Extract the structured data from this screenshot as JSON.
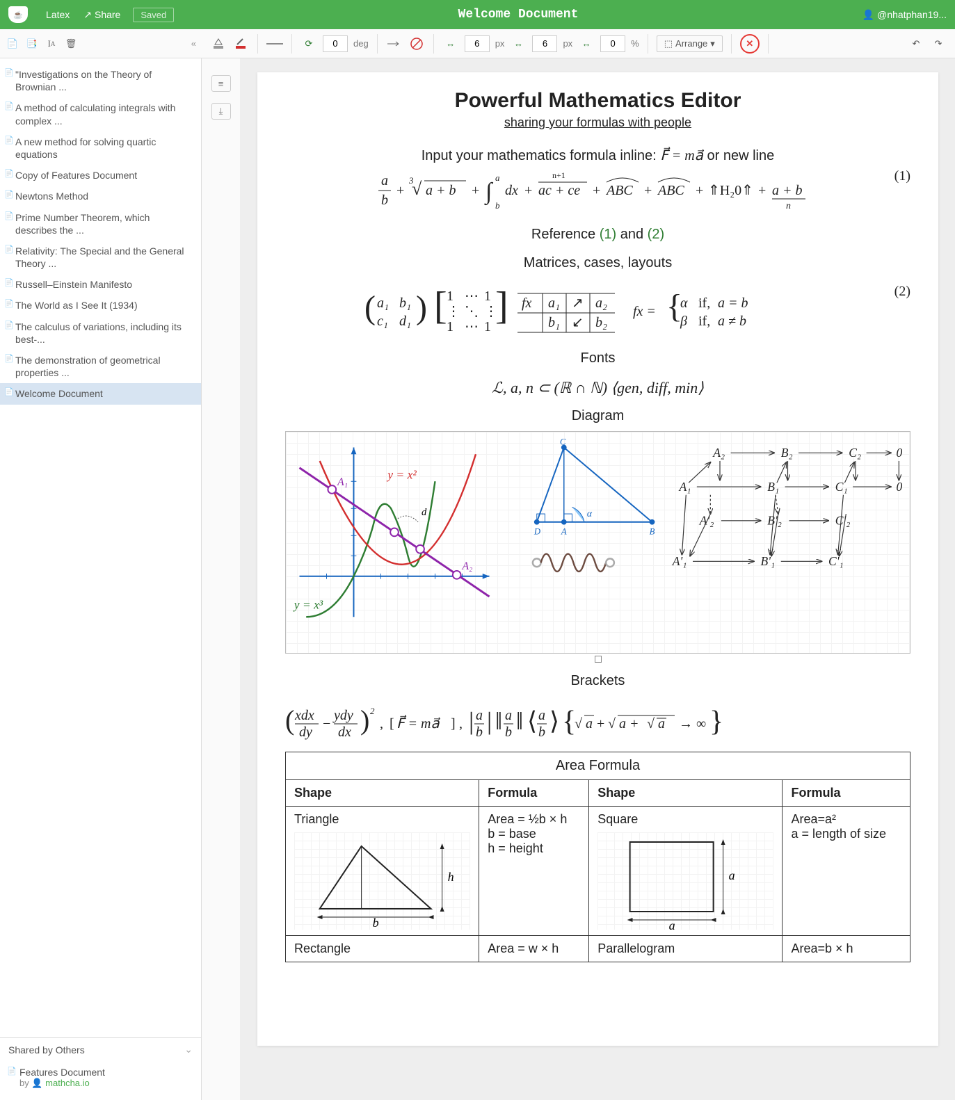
{
  "header": {
    "latex_btn": "Latex",
    "share_btn": "Share",
    "saved_label": "Saved",
    "title": "Welcome Document",
    "user": "@nhatphan19..."
  },
  "toolbar": {
    "rotate_value": "0",
    "rotate_unit": "deg",
    "dim1_value": "6",
    "dim1_unit": "px",
    "dim2_value": "6",
    "dim2_unit": "px",
    "dim3_value": "0",
    "dim3_unit": "%",
    "arrange_label": "Arrange"
  },
  "sidebar": {
    "docs": [
      "\"Investigations on the Theory of Brownian ...",
      "A method of calculating integrals with complex ...",
      "A new method for solving quartic equations",
      "Copy of Features Document",
      "Newtons Method",
      "Prime Number Theorem, which describes the ...",
      "Relativity: The Special and the General Theory ...",
      "Russell–Einstein Manifesto",
      "The World as I See It (1934)",
      "The calculus of variations, including its best-...",
      "The demonstration of geometrical properties ...",
      "Welcome Document"
    ],
    "selected_index": 11,
    "shared_header": "Shared by Others",
    "shared_doc": "Features Document",
    "shared_by": "by",
    "shared_src": "mathcha.io"
  },
  "doc": {
    "title": "Powerful Mathematics Editor",
    "subtitle": "sharing your formulas with people",
    "inline_prefix": "Input your mathematics formula inline: ",
    "inline_mid": " or new line",
    "ref_line_prefix": "Reference ",
    "ref_a": "(1)",
    "ref_and": " and ",
    "ref_b": "(2)",
    "matrices_heading": "Matrices, cases, layouts",
    "fonts_heading": "Fonts",
    "diagram_heading": "Diagram",
    "brackets_heading": "Brackets",
    "area_title": "Area Formula",
    "eq1_num": "(1)",
    "eq2_num": "(2)",
    "eq1": {
      "type": "formula-image",
      "svg_text_fragments": [
        "a",
        "b",
        "+",
        "∛",
        "a + b",
        "+",
        "∫",
        "a",
        "b",
        "dx",
        "+",
        "n+1",
        "ac + ce",
        "+",
        "⏜",
        "ABC",
        "+",
        "⏜",
        "ABC",
        "+",
        "⇑H₂0⇑",
        "+",
        "a + b",
        "n"
      ],
      "colors": {
        "text": "#222"
      }
    },
    "eq2": {
      "type": "formula-image",
      "matrix_a": [
        [
          "a₁",
          "b₁"
        ],
        [
          "c₁",
          "d₁"
        ]
      ],
      "matrix_b": [
        [
          "1",
          "⋯",
          "1"
        ],
        [
          "⋮",
          "⋱",
          "⋮"
        ],
        [
          "1",
          "⋯",
          "1"
        ]
      ],
      "table": [
        [
          "fx",
          "a₁",
          "↗",
          "a₂"
        ],
        [
          "",
          "b₁",
          "↙",
          "b₂"
        ]
      ],
      "cases_lhs": "fx =",
      "cases": [
        [
          "α",
          "if, a = b"
        ],
        [
          "β",
          "if, a ≠ b"
        ]
      ]
    },
    "fonts_line": "ℒ, a, n ⊂ (ℝ ∩ ℕ) ⟨gen, diff, min⟩",
    "brackets_line": "( xdx/dy − ydy/dx )² , [F⃗ = ma⃗] , |a/b| ‖a/b‖ ⟨a/b⟩ { √a + √(a + √a) → ∞ }",
    "diagram": {
      "background_grid": "#f3f3f3",
      "plot": {
        "axes_color": "#1565c0",
        "cubic_color": "#2e7d32",
        "cubic_label": "y = x³",
        "parabola_color": "#d32f2f",
        "parabola_label": "y = x²",
        "line_color": "#8e24aa",
        "point_labels": [
          "A₁",
          "A₂"
        ],
        "d_label": "d"
      },
      "triangle": {
        "stroke": "#1565c0",
        "fill_angle": "#90caf9",
        "vertex_labels": [
          "A",
          "B",
          "C",
          "D"
        ],
        "angle_label": "α"
      },
      "spring": {
        "stroke": "#6d4c41"
      },
      "commutative": {
        "nodes": [
          "A₁",
          "A₂",
          "A'₁",
          "A'₂",
          "B₁",
          "B₂",
          "B'₁",
          "B'₂",
          "C₁",
          "C₂",
          "C'₁",
          "C'₂",
          "0",
          "0"
        ],
        "arrow_color": "#333"
      }
    },
    "area_table": {
      "headers": [
        "Shape",
        "Formula",
        "Shape",
        "Formula"
      ],
      "rows": [
        {
          "shape1": "Triangle",
          "formula1_lines": [
            "Area = ½b × h",
            "b = base",
            "h = height"
          ],
          "shape2": "Square",
          "formula2_lines": [
            "Area=a²",
            "a = length of size"
          ],
          "tri_labels": {
            "b": "b",
            "h": "h"
          },
          "sq_labels": {
            "a": "a"
          }
        },
        {
          "shape1": "Rectangle",
          "formula1_lines": [
            "Area = w × h"
          ],
          "shape2": "Parallelogram",
          "formula2_lines": [
            "Area=b × h"
          ]
        }
      ]
    }
  },
  "colors": {
    "header_bg": "#4caf50",
    "selected_bg": "#d7e4f2",
    "ref_green": "#2e7d32",
    "delete_red": "#e53935"
  }
}
